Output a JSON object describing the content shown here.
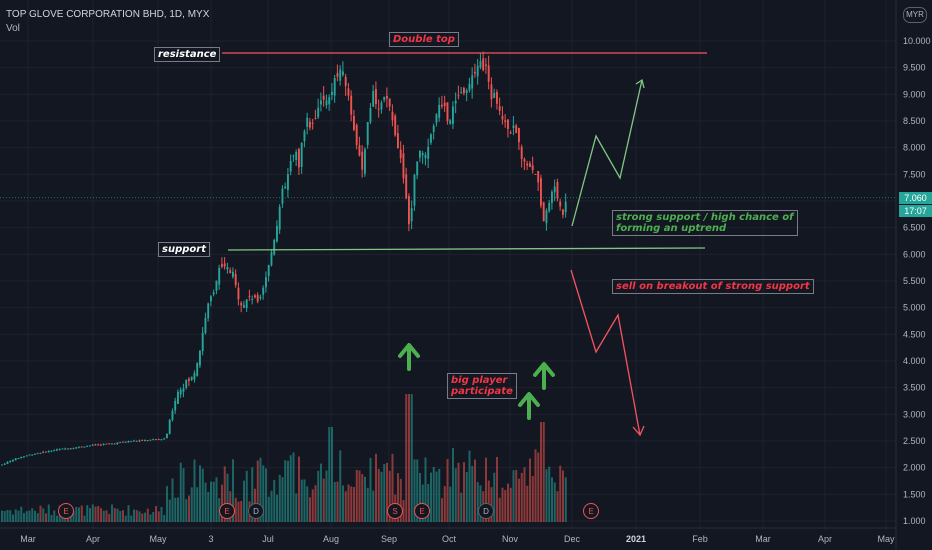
{
  "header": {
    "symbol_line": "TOP GLOVE CORPORATION BHD, 1D, MYX",
    "volume_label": "Vol",
    "currency": "MYR"
  },
  "price_axis": {
    "ticks": [
      "10.000",
      "9.500",
      "9.000",
      "8.500",
      "8.000",
      "7.500",
      "7.000",
      "6.500",
      "6.000",
      "5.500",
      "5.000",
      "4.500",
      "4.000",
      "3.500",
      "3.000",
      "2.500",
      "2.000",
      "1.500",
      "1.000"
    ],
    "last_price": "7.060",
    "countdown": "17:07",
    "last_price_color": "#26a69a"
  },
  "time_axis": {
    "labels": [
      "Mar",
      "Apr",
      "May",
      "3",
      "Jul",
      "Aug",
      "Sep",
      "Oct",
      "Nov",
      "Dec",
      "2021",
      "Feb",
      "Mar",
      "Apr",
      "May"
    ]
  },
  "event_markers": [
    "E",
    "E",
    "D",
    "E",
    "S",
    "E",
    "D",
    "E"
  ],
  "annotations": {
    "double_top": "Double top",
    "resistance": "resistance",
    "support": "support",
    "strong_support_line1": "strong support / high chance of",
    "strong_support_line2": "forming an uptrend",
    "sell_breakout": "sell on breakout of strong support",
    "big_player_line1": "big player",
    "big_player_line2": "participate"
  },
  "colors": {
    "background": "#131722",
    "up": "#26a69a",
    "down": "#ef5350",
    "resistance_line": "#f7525f",
    "support_line": "#81c784",
    "arrow_green": "#4caf50",
    "text_red": "#f23645",
    "text_green": "#4caf50"
  }
}
